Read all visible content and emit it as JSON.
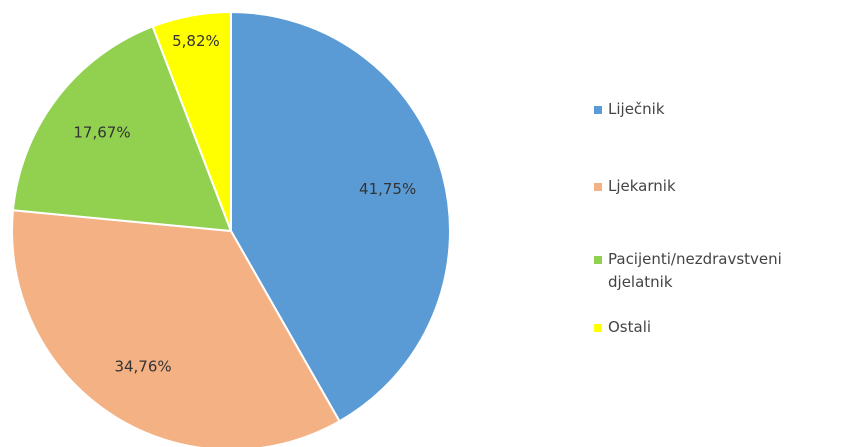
{
  "chart_data": {
    "type": "pie",
    "categories": [
      "Liječnik",
      "Ljekarnik",
      "Pacijenti/nezdravstveni djelatnik",
      "Ostali"
    ],
    "values": [
      41.75,
      34.76,
      17.67,
      5.82
    ],
    "value_labels": [
      "41,75%",
      "34,76%",
      "17,67%",
      "5,82%"
    ],
    "colors": [
      "#5b9bd5",
      "#f4b183",
      "#92d050",
      "#ffff00"
    ],
    "legend": "right"
  }
}
